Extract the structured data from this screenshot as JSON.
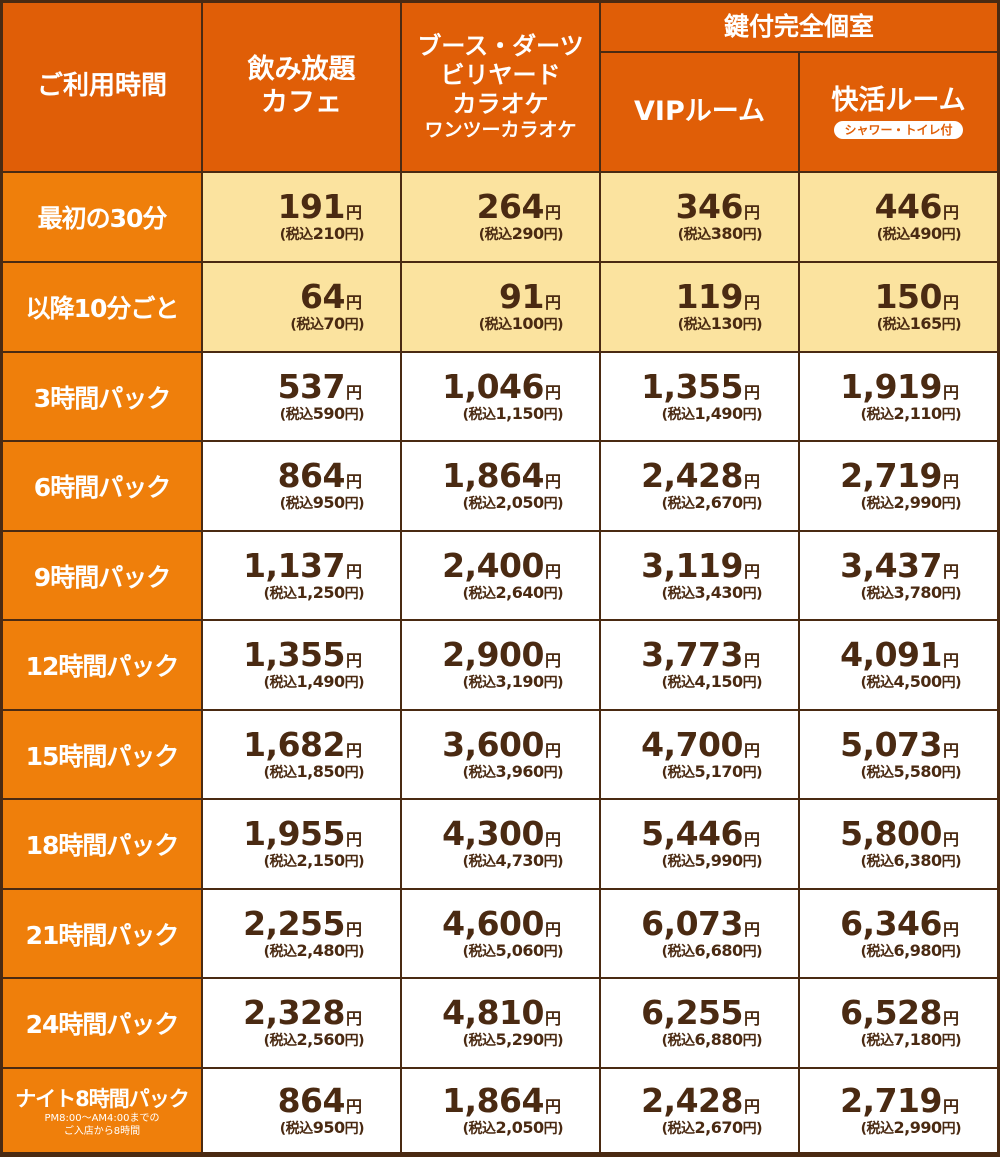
{
  "colors": {
    "header_bg": "#e05e07",
    "row_label_bg": "#ef7f0b",
    "highlight_bg": "#fbe39f",
    "border": "#4a2a12",
    "text": "#4a2a12"
  },
  "header": {
    "usage_time": "ご利用時間",
    "col1": [
      "飲み放題",
      "カフェ"
    ],
    "col2": [
      "ブース・ダーツ",
      "ビリヤード",
      "カラオケ",
      "ワンツーカラオケ"
    ],
    "private_group": "鍵付完全個室",
    "col3": "VIPルーム",
    "col4": "快活ルーム",
    "col4_badge": "シャワー・トイレ付"
  },
  "yen": "円",
  "tax_prefix": "(税込",
  "tax_suffix": "円)",
  "rows": [
    {
      "label": "最初の30分",
      "prices": [
        {
          "p": "191",
          "t": "210"
        },
        {
          "p": "264",
          "t": "290"
        },
        {
          "p": "346",
          "t": "380"
        },
        {
          "p": "446",
          "t": "490"
        }
      ]
    },
    {
      "label": "以降10分ごと",
      "prices": [
        {
          "p": "64",
          "t": "70"
        },
        {
          "p": "91",
          "t": "100"
        },
        {
          "p": "119",
          "t": "130"
        },
        {
          "p": "150",
          "t": "165"
        }
      ]
    },
    {
      "label": "3時間パック",
      "prices": [
        {
          "p": "537",
          "t": "590"
        },
        {
          "p": "1,046",
          "t": "1,150"
        },
        {
          "p": "1,355",
          "t": "1,490"
        },
        {
          "p": "1,919",
          "t": "2,110"
        }
      ]
    },
    {
      "label": "6時間パック",
      "prices": [
        {
          "p": "864",
          "t": "950"
        },
        {
          "p": "1,864",
          "t": "2,050"
        },
        {
          "p": "2,428",
          "t": "2,670"
        },
        {
          "p": "2,719",
          "t": "2,990"
        }
      ]
    },
    {
      "label": "9時間パック",
      "prices": [
        {
          "p": "1,137",
          "t": "1,250"
        },
        {
          "p": "2,400",
          "t": "2,640"
        },
        {
          "p": "3,119",
          "t": "3,430"
        },
        {
          "p": "3,437",
          "t": "3,780"
        }
      ]
    },
    {
      "label": "12時間パック",
      "prices": [
        {
          "p": "1,355",
          "t": "1,490"
        },
        {
          "p": "2,900",
          "t": "3,190"
        },
        {
          "p": "3,773",
          "t": "4,150"
        },
        {
          "p": "4,091",
          "t": "4,500"
        }
      ]
    },
    {
      "label": "15時間パック",
      "prices": [
        {
          "p": "1,682",
          "t": "1,850"
        },
        {
          "p": "3,600",
          "t": "3,960"
        },
        {
          "p": "4,700",
          "t": "5,170"
        },
        {
          "p": "5,073",
          "t": "5,580"
        }
      ]
    },
    {
      "label": "18時間パック",
      "prices": [
        {
          "p": "1,955",
          "t": "2,150"
        },
        {
          "p": "4,300",
          "t": "4,730"
        },
        {
          "p": "5,446",
          "t": "5,990"
        },
        {
          "p": "5,800",
          "t": "6,380"
        }
      ]
    },
    {
      "label": "21時間パック",
      "prices": [
        {
          "p": "2,255",
          "t": "2,480"
        },
        {
          "p": "4,600",
          "t": "5,060"
        },
        {
          "p": "6,073",
          "t": "6,680"
        },
        {
          "p": "6,346",
          "t": "6,980"
        }
      ]
    },
    {
      "label": "24時間パック",
      "prices": [
        {
          "p": "2,328",
          "t": "2,560"
        },
        {
          "p": "4,810",
          "t": "5,290"
        },
        {
          "p": "6,255",
          "t": "6,880"
        },
        {
          "p": "6,528",
          "t": "7,180"
        }
      ]
    },
    {
      "label": "ナイト8時間パック",
      "note": [
        "PM8:00〜AM4:00までの",
        "ご入店から8時間"
      ],
      "prices": [
        {
          "p": "864",
          "t": "950"
        },
        {
          "p": "1,864",
          "t": "2,050"
        },
        {
          "p": "2,428",
          "t": "2,670"
        },
        {
          "p": "2,719",
          "t": "2,990"
        }
      ]
    }
  ]
}
